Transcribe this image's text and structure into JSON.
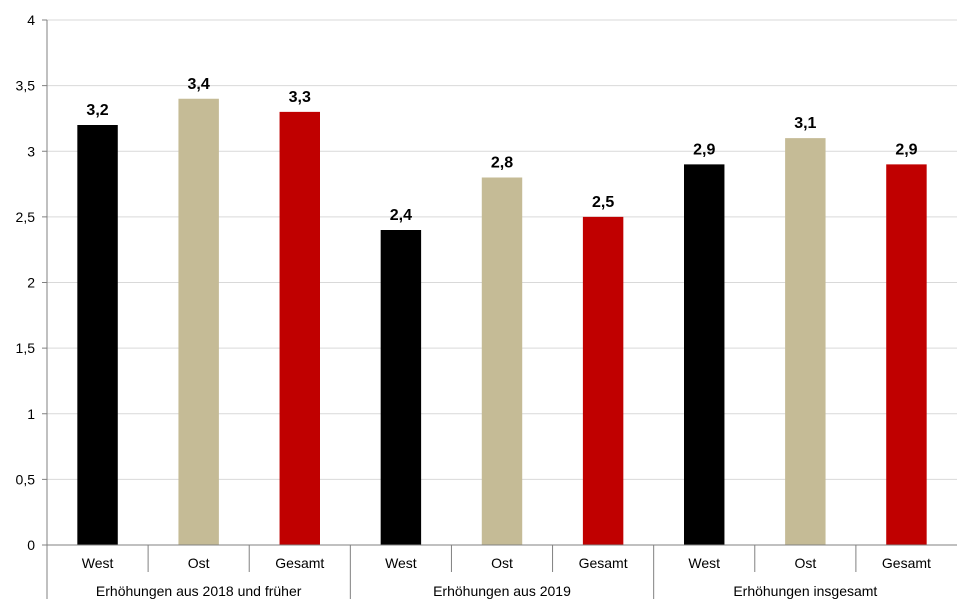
{
  "chart_data": {
    "type": "bar",
    "groups": [
      {
        "label": "Erhöhungen aus 2018 und früher",
        "categories": [
          "West",
          "Ost",
          "Gesamt"
        ],
        "values": [
          3.2,
          3.4,
          3.3
        ],
        "value_labels": [
          "3,2",
          "3,4",
          "3,3"
        ]
      },
      {
        "label": "Erhöhungen aus 2019",
        "categories": [
          "West",
          "Ost",
          "Gesamt"
        ],
        "values": [
          2.4,
          2.8,
          2.5
        ],
        "value_labels": [
          "2,4",
          "2,8",
          "2,5"
        ]
      },
      {
        "label": "Erhöhungen insgesamt",
        "categories": [
          "West",
          "Ost",
          "Gesamt"
        ],
        "values": [
          2.9,
          3.1,
          2.9
        ],
        "value_labels": [
          "2,9",
          "3,1",
          "2,9"
        ]
      }
    ],
    "category_colors": {
      "West": "#000000",
      "Ost": "#c5bb96",
      "Gesamt": "#c00000"
    },
    "ylim": [
      0,
      4
    ],
    "yticks": [
      0,
      0.5,
      1,
      1.5,
      2,
      2.5,
      3,
      3.5,
      4
    ],
    "ytick_labels": [
      "0",
      "0,5",
      "1",
      "1,5",
      "2",
      "2,5",
      "3",
      "3,5",
      "4"
    ],
    "grid": true,
    "legend": false,
    "title": "",
    "xlabel": "",
    "ylabel": ""
  }
}
